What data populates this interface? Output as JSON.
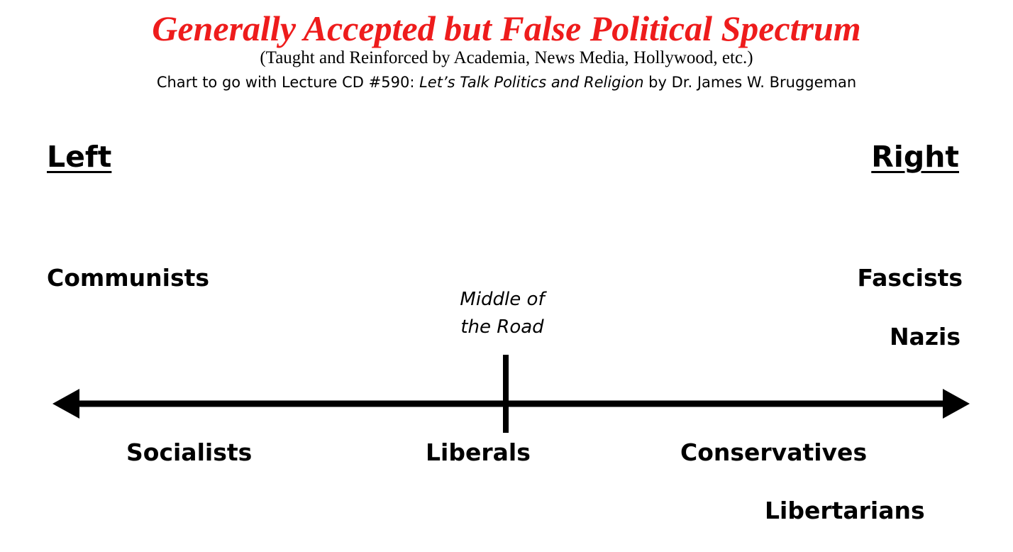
{
  "header": {
    "title": "Generally Accepted but False Political Spectrum",
    "subtitle": "(Taught and Reinforced by Academia, News Media, Hollywood, etc.)",
    "credit_prefix": "Chart to go with Lecture CD #590: ",
    "credit_title": "Let’s Talk Politics and Religion",
    "credit_suffix": " by Dr. James W. Bruggeman"
  },
  "poles": {
    "left": "Left",
    "right": "Right"
  },
  "middle": {
    "line1": "Middle of",
    "line2": "the Road"
  },
  "groups": {
    "communists": "Communists",
    "fascists": "Fascists",
    "nazis": "Nazis",
    "socialists": "Socialists",
    "liberals": "Liberals",
    "conservatives": "Conservatives",
    "libertarians": "Libertarians"
  },
  "colors": {
    "title": "#ee1c1c",
    "text": "#000000"
  }
}
